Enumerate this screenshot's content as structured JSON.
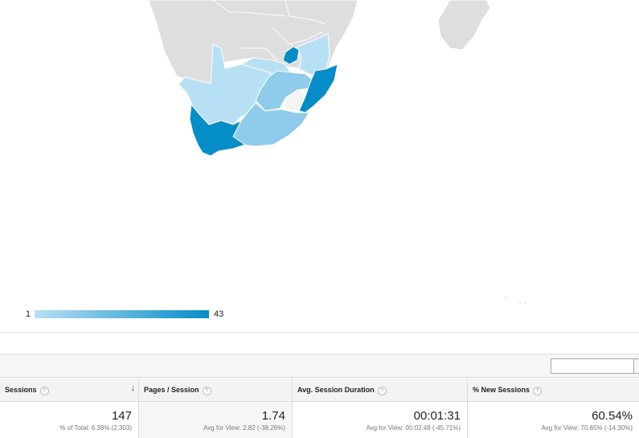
{
  "map": {
    "legend_min": "1",
    "legend_max": "43",
    "colors": {
      "land": "#dedede",
      "low": "#b8e0f4",
      "mid": "#8fcbea",
      "high": "#058dc7",
      "border": "#ffffff"
    }
  },
  "toolbar": {
    "search_value": ""
  },
  "table": {
    "columns": [
      {
        "label": "Sessions",
        "help": "?",
        "sorted": true
      },
      {
        "label": "Pages / Session",
        "help": "?"
      },
      {
        "label": "Avg. Session Duration",
        "help": "?"
      },
      {
        "label": "% New Sessions",
        "help": "?"
      }
    ],
    "totals": [
      {
        "value": "147",
        "sub": "% of Total: 6.38% (2,303)"
      },
      {
        "value": "1.74",
        "sub": "Avg for View: 2.82 (-38.26%)"
      },
      {
        "value": "00:01:31",
        "sub": "Avg for View: 00:02:48 (-45.71%)"
      },
      {
        "value": "60.54%",
        "sub": "Avg for View: 70.65% (-14.30%)"
      }
    ]
  }
}
